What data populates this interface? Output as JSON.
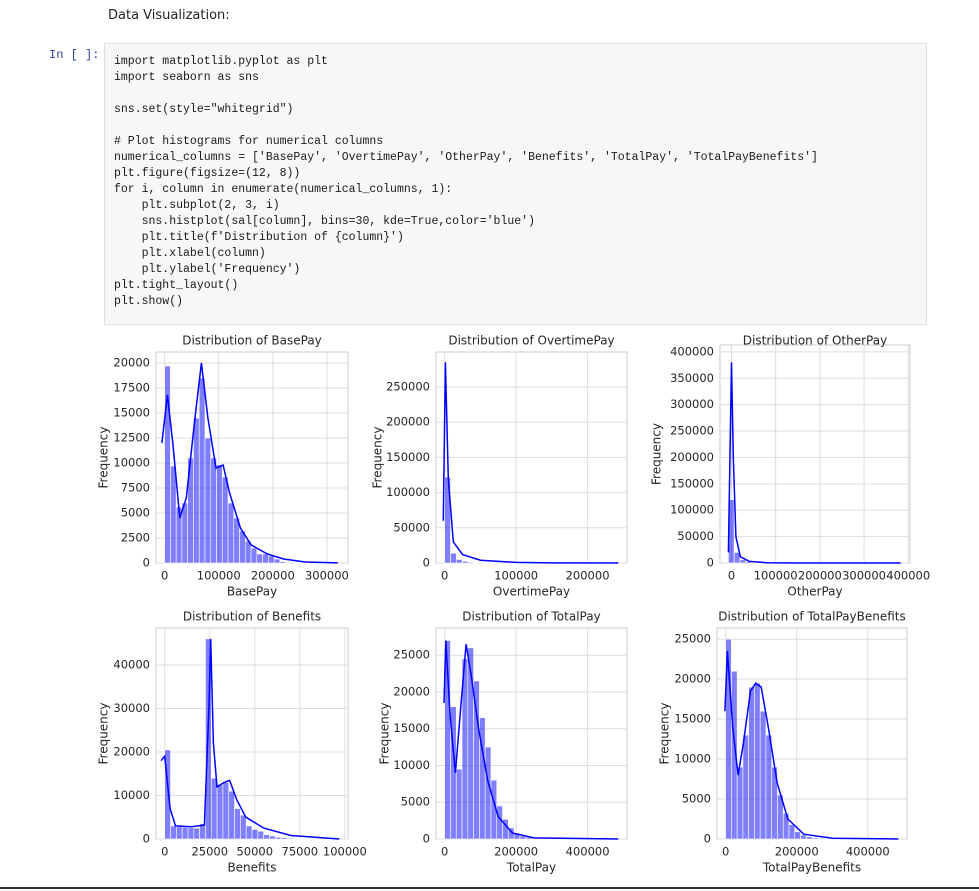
{
  "markdown": "Data Visualization:",
  "cell": {
    "prompt": "In [ ]:",
    "code": "import matplotlib.pyplot as plt\nimport seaborn as sns\n\nsns.set(style=\"whitegrid\")\n\n# Plot histograms for numerical columns\nnumerical_columns = ['BasePay', 'OvertimePay', 'OtherPay', 'Benefits', 'TotalPay', 'TotalPayBenefits']\nplt.figure(figsize=(12, 8))\nfor i, column in enumerate(numerical_columns, 1):\n    plt.subplot(2, 3, i)\n    sns.histplot(sal[column], bins=30, kde=True,color='blue')\n    plt.title(f'Distribution of {column}')\n    plt.xlabel(column)\n    plt.ylabel('Frequency')\nplt.tight_layout()\nplt.show()"
  },
  "chart_data": [
    {
      "type": "histogram",
      "title": "Distribution of BasePay",
      "xlabel": "BasePay",
      "ylabel": "Frequency",
      "color": "#0000ff",
      "grid": true,
      "bins": [
        0,
        10650,
        21300,
        31950,
        42600,
        53250,
        63900,
        74550,
        85200,
        95850,
        106500,
        117150,
        127800,
        138450,
        149100,
        159750,
        170400,
        181050,
        191700,
        202350,
        213000,
        223650,
        234300,
        244950,
        255600,
        266250,
        276900,
        287550,
        298200,
        308850,
        319500
      ],
      "counts": [
        19700,
        9700,
        5600,
        6000,
        10500,
        14500,
        18500,
        12500,
        10500,
        9800,
        8600,
        6000,
        4500,
        3200,
        2200,
        1500,
        900,
        900,
        700,
        400,
        150,
        80,
        40,
        20,
        10,
        5,
        3,
        2,
        1,
        1
      ],
      "kde": {
        "x": [
          -5000,
          5000,
          15000,
          28000,
          40000,
          55000,
          68000,
          80000,
          95000,
          108000,
          120000,
          140000,
          160000,
          190000,
          220000,
          260000,
          320000
        ],
        "values": [
          12000,
          16800,
          12000,
          4500,
          6500,
          14000,
          20000,
          14500,
          9500,
          9800,
          7000,
          3500,
          1800,
          900,
          400,
          100,
          10
        ]
      },
      "xlim": [
        -16000,
        339000
      ],
      "ylim": [
        0,
        21100
      ],
      "xticks": [
        0,
        100000,
        200000,
        300000
      ],
      "yticks": [
        0,
        2500,
        5000,
        7500,
        10000,
        12500,
        15000,
        17500,
        20000
      ]
    },
    {
      "type": "histogram",
      "title": "Distribution of OvertimePay",
      "xlabel": "OvertimePay",
      "ylabel": "Frequency",
      "color": "#0000ff",
      "grid": true,
      "bins": [
        0,
        8100,
        16200,
        24300,
        32400,
        40500,
        48600,
        56700,
        64800,
        72900,
        81000,
        89100,
        97200,
        105300,
        113400,
        121500,
        129600,
        137700,
        145800,
        153900,
        162000,
        170100,
        178200,
        186300,
        194400,
        202500,
        210600,
        218700,
        226800,
        234900,
        243000
      ],
      "counts": [
        122000,
        14000,
        5000,
        2500,
        1300,
        800,
        500,
        300,
        200,
        120,
        80,
        50,
        30,
        20,
        15,
        10,
        8,
        5,
        4,
        3,
        2,
        2,
        1,
        1,
        1,
        1,
        1,
        0,
        0,
        1
      ],
      "kde": {
        "x": [
          -2000,
          1000,
          5000,
          12000,
          25000,
          50000,
          100000,
          150000,
          243000
        ],
        "values": [
          60000,
          285000,
          120000,
          30000,
          12000,
          4000,
          800,
          200,
          0
        ]
      },
      "xlim": [
        -12200,
        255200
      ],
      "ylim": [
        0,
        299700
      ],
      "xticks": [
        0,
        100000,
        200000
      ],
      "yticks": [
        0,
        50000,
        100000,
        150000,
        200000,
        250000
      ]
    },
    {
      "type": "histogram",
      "title": "Distribution of OtherPay",
      "xlabel": "OtherPay",
      "ylabel": "Frequency",
      "color": "#0000ff",
      "grid": true,
      "bins": [
        -7000,
        6000,
        19000,
        32000,
        45000,
        58000,
        71000,
        84000,
        97000,
        110000,
        123000,
        136000,
        149000,
        162000,
        175000,
        188000,
        201000,
        214000,
        227000,
        240000,
        253000,
        266000,
        279000,
        292000,
        305000,
        318000,
        331000,
        344000,
        357000,
        370000,
        383000
      ],
      "counts": [
        120000,
        20000,
        6000,
        2500,
        1000,
        500,
        300,
        150,
        80,
        40,
        20,
        15,
        10,
        5,
        3,
        2,
        2,
        1,
        1,
        1,
        1,
        0,
        0,
        0,
        1,
        0,
        0,
        0,
        0,
        1
      ],
      "kde": {
        "x": [
          -7000,
          0,
          4000,
          10000,
          20000,
          40000,
          80000,
          150000,
          383000
        ],
        "values": [
          20000,
          380000,
          200000,
          50000,
          12000,
          3000,
          500,
          50,
          0
        ]
      },
      "xlim": [
        -26000,
        404000
      ],
      "ylim": [
        0,
        413000
      ],
      "xticks": [
        0,
        100000,
        200000,
        300000,
        400000
      ],
      "yticks": [
        0,
        50000,
        100000,
        150000,
        200000,
        250000,
        300000,
        350000,
        400000
      ]
    },
    {
      "type": "histogram",
      "title": "Distribution of Benefits",
      "xlabel": "Benefits",
      "ylabel": "Frequency",
      "color": "#0000ff",
      "grid": true,
      "bins": [
        0,
        3230,
        6460,
        9690,
        12920,
        16150,
        19380,
        22610,
        25840,
        29070,
        32300,
        35530,
        38760,
        41990,
        45220,
        48450,
        51680,
        54910,
        58140,
        61370,
        64600,
        67830,
        71060,
        74290,
        77520,
        80750,
        83980,
        87210,
        90440,
        93670,
        96900
      ],
      "counts": [
        20500,
        3000,
        2800,
        2700,
        2600,
        2500,
        3500,
        46000,
        14000,
        12500,
        13000,
        11000,
        7000,
        5500,
        3000,
        2200,
        1800,
        1000,
        700,
        400,
        300,
        200,
        150,
        100,
        60,
        40,
        20,
        10,
        5,
        3
      ],
      "kde": {
        "x": [
          -2000,
          0,
          3000,
          6000,
          15000,
          22000,
          24500,
          25500,
          27000,
          29000,
          33000,
          36000,
          40000,
          45000,
          55000,
          70000,
          96900
        ],
        "values": [
          18000,
          19000,
          7000,
          3000,
          2800,
          3200,
          30000,
          46000,
          22000,
          12000,
          13000,
          13500,
          9000,
          5000,
          2500,
          800,
          0
        ]
      },
      "xlim": [
        -4850,
        101750
      ],
      "ylim": [
        0,
        48500
      ],
      "xticks": [
        0,
        25000,
        50000,
        75000,
        100000
      ],
      "yticks": [
        0,
        10000,
        20000,
        30000,
        40000
      ]
    },
    {
      "type": "histogram",
      "title": "Distribution of TotalPay",
      "xlabel": "TotalPay",
      "ylabel": "Frequency",
      "color": "#0000ff",
      "grid": true,
      "bins": [
        0,
        16200,
        32400,
        48600,
        64800,
        81000,
        97200,
        113400,
        129600,
        145800,
        162000,
        178200,
        194400,
        210600,
        226800,
        243000,
        259200,
        275400,
        291600,
        307800,
        324000,
        340200,
        356400,
        372600,
        388800,
        405000,
        421200,
        437400,
        453600,
        469800,
        486000
      ],
      "counts": [
        27000,
        18000,
        9500,
        24500,
        26000,
        21500,
        16500,
        12500,
        8000,
        4500,
        2700,
        1500,
        800,
        400,
        250,
        150,
        100,
        60,
        40,
        25,
        15,
        10,
        6,
        4,
        3,
        2,
        1,
        1,
        1,
        1
      ],
      "kde": {
        "x": [
          -2000,
          3000,
          15000,
          30000,
          45000,
          60000,
          75000,
          95000,
          120000,
          150000,
          190000,
          250000,
          486000
        ],
        "values": [
          18500,
          27000,
          17000,
          9000,
          18000,
          26500,
          22000,
          15000,
          8000,
          3000,
          800,
          150,
          0
        ]
      },
      "xlim": [
        -24300,
        510300
      ],
      "ylim": [
        0,
        28700
      ],
      "xticks": [
        0,
        200000,
        400000
      ],
      "yticks": [
        0,
        5000,
        10000,
        15000,
        20000,
        25000
      ]
    },
    {
      "type": "histogram",
      "title": "Distribution of TotalPayBenefits",
      "xlabel": "TotalPayBenefits",
      "ylabel": "Frequency",
      "color": "#0000ff",
      "grid": true,
      "bins": [
        0,
        16200,
        32400,
        48600,
        64800,
        81000,
        97200,
        113400,
        129600,
        145800,
        162000,
        178200,
        194400,
        210600,
        226800,
        243000,
        259200,
        275400,
        291600,
        307800,
        324000,
        340200,
        356400,
        372600,
        388800,
        405000,
        421200,
        437400,
        453600,
        469800,
        486000
      ],
      "counts": [
        25000,
        21000,
        9000,
        13000,
        19000,
        19500,
        16000,
        13000,
        9000,
        5500,
        3200,
        1800,
        900,
        500,
        300,
        150,
        100,
        60,
        40,
        25,
        15,
        10,
        6,
        4,
        3,
        2,
        1,
        1,
        1,
        1
      ],
      "kde": {
        "x": [
          -2000,
          5000,
          20000,
          35000,
          50000,
          70000,
          85000,
          100000,
          120000,
          145000,
          175000,
          220000,
          300000,
          486000
        ],
        "values": [
          16000,
          23500,
          14000,
          8000,
          12000,
          18500,
          19500,
          19000,
          14000,
          7000,
          2500,
          600,
          100,
          0
        ]
      },
      "xlim": [
        -24300,
        510300
      ],
      "ylim": [
        0,
        26400
      ],
      "xticks": [
        0,
        200000,
        400000
      ],
      "yticks": [
        0,
        5000,
        10000,
        15000,
        20000,
        25000
      ]
    }
  ]
}
